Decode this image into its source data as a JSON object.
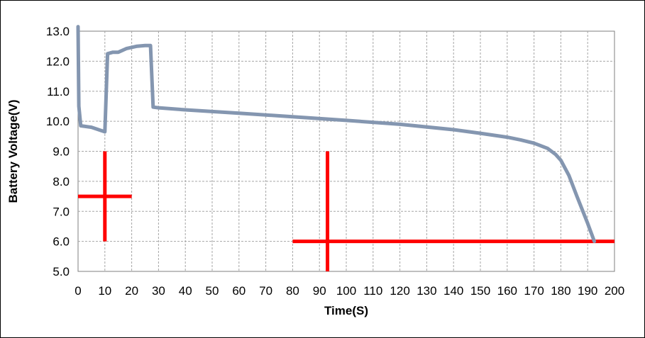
{
  "chart_data": {
    "type": "line",
    "xlabel": "Time(S)",
    "ylabel": "Battery Voltage(V)",
    "xlim": [
      0,
      200
    ],
    "ylim": [
      5.0,
      13.0
    ],
    "x_ticks": [
      "0",
      "10",
      "20",
      "30",
      "40",
      "50",
      "60",
      "70",
      "80",
      "90",
      "100",
      "110",
      "120",
      "130",
      "140",
      "150",
      "160",
      "170",
      "180",
      "190",
      "200"
    ],
    "y_ticks": [
      "5.0",
      "6.0",
      "7.0",
      "8.0",
      "9.0",
      "10.0",
      "11.0",
      "12.0",
      "13.0"
    ],
    "grid": true,
    "legend": "none",
    "series": [
      {
        "color": "#8496B0",
        "x": [
          0,
          0.3,
          1,
          5,
          10,
          11,
          13,
          15,
          18,
          22,
          25,
          27,
          28,
          30,
          40,
          60,
          80,
          100,
          120,
          140,
          150,
          160,
          165,
          170,
          175,
          178,
          180,
          183,
          186,
          190,
          192.5
        ],
        "y": [
          13.2,
          10.5,
          9.85,
          9.8,
          9.65,
          12.25,
          12.3,
          12.3,
          12.42,
          12.5,
          12.52,
          12.52,
          10.47,
          10.45,
          10.38,
          10.27,
          10.15,
          10.03,
          9.9,
          9.72,
          9.6,
          9.47,
          9.38,
          9.27,
          9.1,
          8.9,
          8.7,
          8.2,
          7.5,
          6.6,
          6.0
        ]
      }
    ],
    "annotations": [
      {
        "type": "crosshair",
        "color": "#FF0000",
        "x_line": [
          0,
          20
        ],
        "y_at": 7.5,
        "v_x": 10,
        "v_line": [
          6.0,
          9.0
        ]
      },
      {
        "type": "crosshair",
        "color": "#FF0000",
        "x_line": [
          80,
          200
        ],
        "y_at": 6.0,
        "v_x": 93,
        "v_line": [
          5.0,
          9.0
        ]
      }
    ]
  }
}
